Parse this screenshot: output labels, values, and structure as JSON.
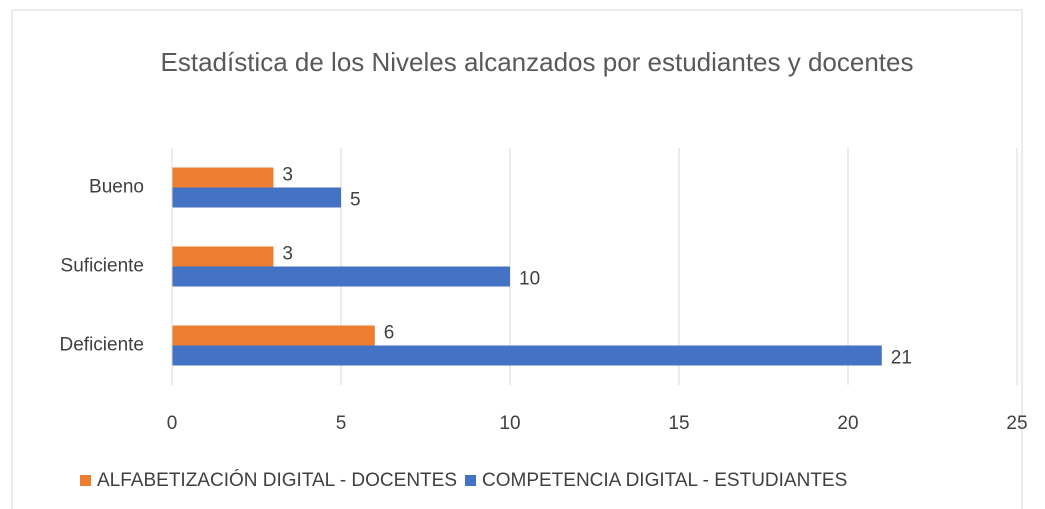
{
  "chart_data": {
    "type": "hbar",
    "title": "Estadística de los Niveles alcanzados por estudiantes y docentes",
    "categories": [
      "Bueno",
      "Suficiente",
      "Deficiente"
    ],
    "series": [
      {
        "name": "ALFABETIZACIÓN DIGITAL - DOCENTES",
        "color": "#ed7d31",
        "values": [
          3,
          3,
          6
        ]
      },
      {
        "name": "COMPETENCIA DIGITAL - ESTUDIANTES",
        "color": "#4472c4",
        "values": [
          5,
          10,
          21
        ]
      }
    ],
    "xlim": [
      0,
      25
    ],
    "xticks": [
      0,
      5,
      10,
      15,
      20,
      25
    ],
    "grid": true,
    "legend": "bottom"
  }
}
